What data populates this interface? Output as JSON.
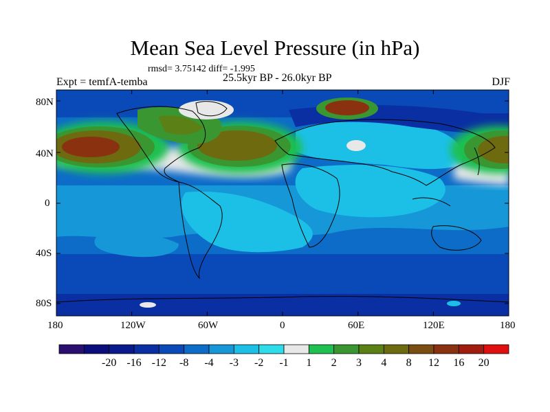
{
  "title": "Mean Sea Level Pressure (in hPa)",
  "stats": "rmsd= 3.75142 diff= -1.995",
  "expt": "Expt = temfA-temba",
  "period": "25.5kyr BP - 26.0kyr BP",
  "season": "DJF",
  "map": {
    "lat_labels": [
      "80N",
      "40N",
      "0",
      "40S",
      "80S"
    ],
    "lon_labels": [
      "180",
      "120W",
      "60W",
      "0",
      "60E",
      "120E",
      "180"
    ]
  },
  "colorbar": {
    "colors": [
      "#2a0f6e",
      "#0b0d7a",
      "#0a1a8c",
      "#0a2fa3",
      "#0a4ab8",
      "#0d6cc8",
      "#1597d8",
      "#1cc0e6",
      "#2fdcea",
      "#e8e8e8",
      "#1ec050",
      "#3a9630",
      "#5b8016",
      "#6e6a10",
      "#7a4e10",
      "#8a3210",
      "#a01c0c",
      "#e01010"
    ],
    "labels": [
      "-20",
      "-16",
      "-12",
      "-8",
      "-4",
      "-3",
      "-2",
      "-1",
      "1",
      "2",
      "3",
      "4",
      "8",
      "12",
      "16",
      "20"
    ]
  }
}
